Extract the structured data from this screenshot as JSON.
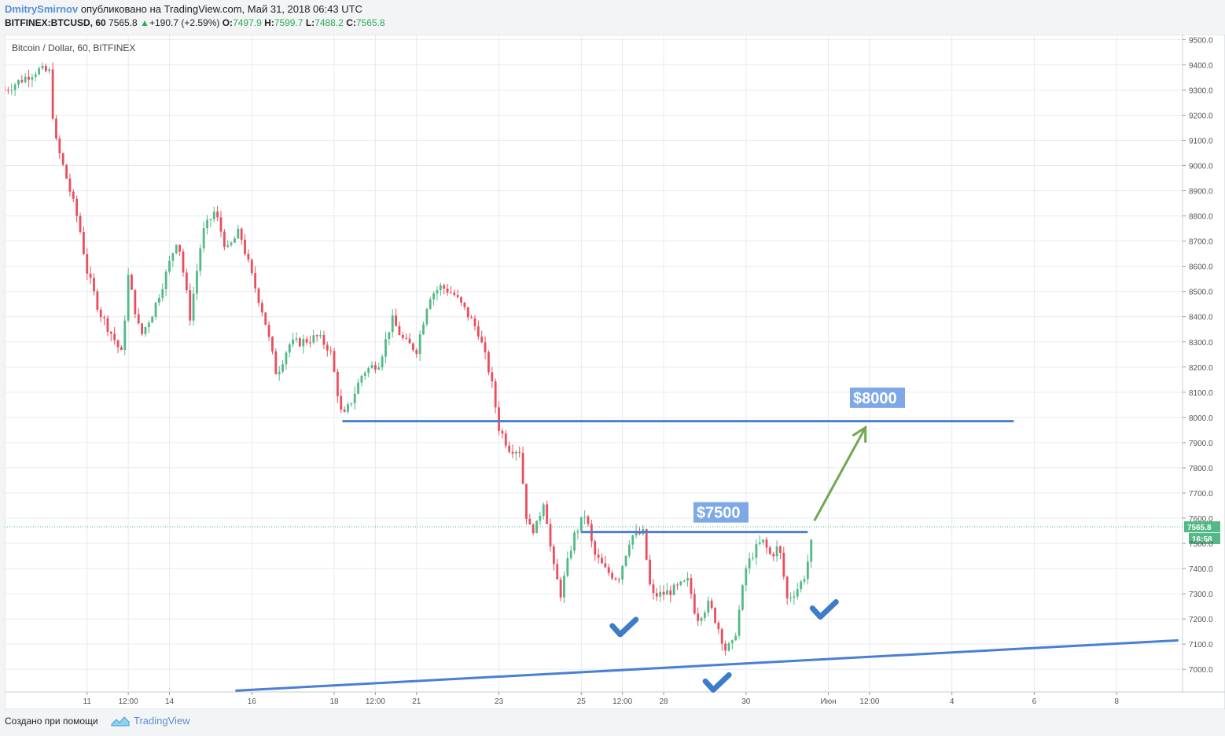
{
  "header": {
    "author": "DmitrySmirnov",
    "published": "опубликовано на TradingView.com, Май 31, 2018 06:43 UTC",
    "symbol": "BITFINEX:BTCUSD, 60",
    "last": "7565.8",
    "change_arrow": "▲",
    "change": "+190.7 (+2.59%)",
    "o_label": "O:",
    "o_value": "7497.9",
    "h_label": "H:",
    "h_value": "7599.7",
    "l_label": "L:",
    "l_value": "7488.2",
    "c_label": "C:",
    "c_value": "7565.8"
  },
  "chart_data": {
    "type": "candlestick",
    "title": "Bitcoin / Dollar, 60, BITFINEX",
    "ylim": [
      6910,
      9520
    ],
    "y_ticks": [
      7000,
      7100,
      7200,
      7300,
      7400,
      7500,
      7600,
      7700,
      7800,
      7900,
      8000,
      8100,
      8200,
      8300,
      8400,
      8500,
      8600,
      8700,
      8800,
      8900,
      9000,
      9100,
      9200,
      9300,
      9400,
      9500
    ],
    "y_tick_labels": [
      "7000.0",
      "7100.0",
      "7200.0",
      "7300.0",
      "7400.0",
      "7500.0",
      "7600.0",
      "7700.0",
      "7800.0",
      "7900.0",
      "8000.0",
      "8100.0",
      "8200.0",
      "8300.0",
      "8400.0",
      "8500.0",
      "8600.0",
      "8700.0",
      "8800.0",
      "8900.0",
      "9000.0",
      "9100.0",
      "9200.0",
      "9300.0",
      "9400.0",
      "9500.0"
    ],
    "x_unit": "days since 10 May 2018 00:00 UTC",
    "xlim": [
      0,
      14.3
    ],
    "x_ticks": [
      {
        "x": 1.0,
        "label": "11"
      },
      {
        "x": 1.5,
        "label": "12:00"
      },
      {
        "x": 2.0,
        "label": "14"
      },
      {
        "x": 3.0,
        "label": "16"
      },
      {
        "x": 4.0,
        "label": "18"
      },
      {
        "x": 4.5,
        "label": "12:00"
      },
      {
        "x": 5.0,
        "label": "21"
      },
      {
        "x": 6.0,
        "label": "23"
      },
      {
        "x": 7.0,
        "label": "25"
      },
      {
        "x": 7.5,
        "label": "12:00"
      },
      {
        "x": 8.0,
        "label": "28"
      },
      {
        "x": 9.0,
        "label": "30"
      },
      {
        "x": 10.0,
        "label": "Июн"
      },
      {
        "x": 10.5,
        "label": "12:00"
      },
      {
        "x": 11.5,
        "label": "4"
      },
      {
        "x": 12.5,
        "label": "6"
      },
      {
        "x": 13.5,
        "label": "8"
      }
    ],
    "price_path": [
      [
        0.0,
        9300
      ],
      [
        0.2,
        9340
      ],
      [
        0.4,
        9380
      ],
      [
        0.55,
        9370
      ],
      [
        0.6,
        9120
      ],
      [
        0.75,
        8950
      ],
      [
        0.9,
        8770
      ],
      [
        1.0,
        8580
      ],
      [
        1.15,
        8420
      ],
      [
        1.3,
        8330
      ],
      [
        1.42,
        8250
      ],
      [
        1.5,
        8560
      ],
      [
        1.65,
        8320
      ],
      [
        1.8,
        8420
      ],
      [
        1.95,
        8560
      ],
      [
        2.1,
        8720
      ],
      [
        2.25,
        8400
      ],
      [
        2.4,
        8730
      ],
      [
        2.55,
        8820
      ],
      [
        2.7,
        8660
      ],
      [
        2.85,
        8740
      ],
      [
        3.0,
        8560
      ],
      [
        3.15,
        8400
      ],
      [
        3.3,
        8170
      ],
      [
        3.45,
        8290
      ],
      [
        3.6,
        8300
      ],
      [
        3.8,
        8320
      ],
      [
        3.95,
        8270
      ],
      [
        4.1,
        7990
      ],
      [
        4.2,
        8060
      ],
      [
        4.35,
        8180
      ],
      [
        4.55,
        8220
      ],
      [
        4.7,
        8390
      ],
      [
        4.85,
        8300
      ],
      [
        5.0,
        8270
      ],
      [
        5.15,
        8480
      ],
      [
        5.3,
        8520
      ],
      [
        5.45,
        8490
      ],
      [
        5.6,
        8420
      ],
      [
        5.75,
        8340
      ],
      [
        5.9,
        8160
      ],
      [
        6.0,
        7960
      ],
      [
        6.12,
        7880
      ],
      [
        6.25,
        7870
      ],
      [
        6.35,
        7560
      ],
      [
        6.45,
        7560
      ],
      [
        6.55,
        7680
      ],
      [
        6.65,
        7420
      ],
      [
        6.75,
        7300
      ],
      [
        6.9,
        7520
      ],
      [
        7.05,
        7620
      ],
      [
        7.15,
        7460
      ],
      [
        7.3,
        7390
      ],
      [
        7.45,
        7360
      ],
      [
        7.6,
        7530
      ],
      [
        7.75,
        7540
      ],
      [
        7.85,
        7290
      ],
      [
        8.0,
        7300
      ],
      [
        8.15,
        7320
      ],
      [
        8.3,
        7350
      ],
      [
        8.4,
        7200
      ],
      [
        8.55,
        7260
      ],
      [
        8.65,
        7180
      ],
      [
        8.75,
        7080
      ],
      [
        8.85,
        7100
      ],
      [
        9.0,
        7400
      ],
      [
        9.1,
        7470
      ],
      [
        9.2,
        7510
      ],
      [
        9.3,
        7450
      ],
      [
        9.4,
        7490
      ],
      [
        9.5,
        7280
      ],
      [
        9.6,
        7310
      ],
      [
        9.7,
        7360
      ],
      [
        9.78,
        7470
      ],
      [
        9.82,
        7565.8
      ]
    ],
    "candle_colors": {
      "up": "#53b987",
      "down": "#eb4d5c"
    },
    "last_price": {
      "value": 7565.8,
      "label": "7565.8",
      "countdown": "16:58",
      "color": "#53b987"
    },
    "annotations": [
      {
        "type": "horizontal_line",
        "name": "resistance-8000",
        "y": 7985,
        "x_start": 4.1,
        "x_end": 12.25,
        "color": "#4a7fd4"
      },
      {
        "type": "horizontal_line",
        "name": "resistance-7500",
        "y": 7545,
        "x_start": 7.0,
        "x_end": 9.75,
        "color": "#4a7fd4"
      },
      {
        "type": "trend_line",
        "name": "support-trendline",
        "x1": 2.8,
        "y1": 6915,
        "x2": 14.25,
        "y2": 7115,
        "color": "#4a7fd4"
      },
      {
        "type": "arrow",
        "name": "target-arrow",
        "x1": 9.83,
        "y1": 7590,
        "x2": 10.45,
        "y2": 7960,
        "color": "#6fa84f"
      },
      {
        "type": "label",
        "name": "label-8000",
        "text": "$8000",
        "x": 10.3,
        "y": 8075
      },
      {
        "type": "label",
        "name": "label-7500",
        "text": "$7500",
        "x": 8.4,
        "y": 7620
      },
      {
        "type": "checkmark",
        "name": "checkmark-1",
        "x": 7.52,
        "y": 7160
      },
      {
        "type": "checkmark",
        "name": "checkmark-2",
        "x": 8.65,
        "y": 6940
      },
      {
        "type": "checkmark",
        "name": "checkmark-3",
        "x": 9.95,
        "y": 7230
      }
    ],
    "grid": true,
    "colors": {
      "grid": "#e6eaef",
      "axis_text": "#555555",
      "label_bg": "#7ea8e6"
    }
  },
  "footer": {
    "created_with": "Создано при помощи",
    "brand": "TradingView",
    "logo_icon": "tradingview-cloud-icon"
  }
}
